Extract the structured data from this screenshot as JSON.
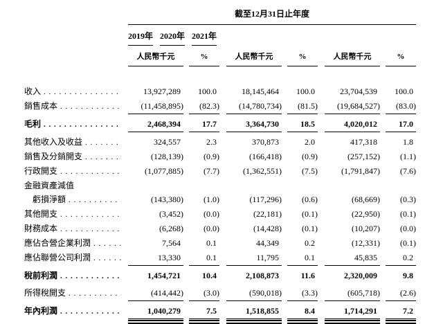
{
  "page": {
    "background": "#ffffff",
    "text_color": "#000000"
  },
  "table": {
    "period_header": "截至12月31日止年度",
    "unit_label": "人民幣千元",
    "percent_label": "%",
    "years": [
      "2019年",
      "2020年",
      "2021年"
    ],
    "rows": [
      {
        "label": "收入",
        "leaders": true,
        "bold": false,
        "indent": false,
        "rule": "none",
        "cells": [
          "13,927,289",
          "100.0",
          "18,145,464",
          "100.0",
          "23,704,539",
          "100.0"
        ]
      },
      {
        "label": "銷售成本",
        "leaders": true,
        "bold": false,
        "indent": false,
        "rule": "single",
        "cells": [
          "(11,458,895)",
          "(82.3)",
          "(14,780,734)",
          "(81.5)",
          "(19,684,527)",
          "(83.0)"
        ]
      },
      {
        "label": "毛利",
        "leaders": true,
        "bold": true,
        "indent": false,
        "rule": "single",
        "cells": [
          "2,468,394",
          "17.7",
          "3,364,730",
          "18.5",
          "4,020,012",
          "17.0"
        ]
      },
      {
        "label": "其他收入及收益",
        "leaders": true,
        "bold": false,
        "indent": false,
        "rule": "none",
        "cells": [
          "324,557",
          "2.3",
          "370,873",
          "2.0",
          "417,318",
          "1.8"
        ]
      },
      {
        "label": "銷售及分銷開支",
        "leaders": true,
        "bold": false,
        "indent": false,
        "rule": "none",
        "cells": [
          "(128,139)",
          "(0.9)",
          "(166,418)",
          "(0.9)",
          "(257,152)",
          "(1.1)"
        ]
      },
      {
        "label": "行政開支",
        "leaders": true,
        "bold": false,
        "indent": false,
        "rule": "none",
        "cells": [
          "(1,077,885)",
          "(7.7)",
          "(1,362,551)",
          "(7.5)",
          "(1,791,847)",
          "(7.6)"
        ]
      },
      {
        "label": "金融資產減值",
        "leaders": false,
        "bold": false,
        "indent": false,
        "rule": "none",
        "cells": null
      },
      {
        "label": "虧損淨額",
        "leaders": true,
        "bold": false,
        "indent": true,
        "rule": "none",
        "cells": [
          "(143,380)",
          "(1.0)",
          "(117,296)",
          "(0.6)",
          "(68,669)",
          "(0.3)"
        ]
      },
      {
        "label": "其他開支",
        "leaders": true,
        "bold": false,
        "indent": false,
        "rule": "none",
        "cells": [
          "(3,452)",
          "(0.0)",
          "(22,181)",
          "(0.1)",
          "(22,950)",
          "(0.1)"
        ]
      },
      {
        "label": "財務成本",
        "leaders": true,
        "bold": false,
        "indent": false,
        "rule": "none",
        "cells": [
          "(6,268)",
          "(0.0)",
          "(14,428)",
          "(0.1)",
          "(10,207)",
          "(0.0)"
        ]
      },
      {
        "label": "應佔合營企業利潤",
        "leaders": true,
        "bold": false,
        "indent": false,
        "rule": "none",
        "cells": [
          "7,564",
          "0.1",
          "44,349",
          "0.2",
          "(12,331)",
          "(0.1)"
        ]
      },
      {
        "label": "應佔聯營公司利潤",
        "leaders": true,
        "bold": false,
        "indent": false,
        "rule": "single",
        "cells": [
          "13,330",
          "0.1",
          "11,795",
          "0.1",
          "45,835",
          "0.2"
        ]
      },
      {
        "label": "稅前利潤",
        "leaders": true,
        "bold": true,
        "indent": false,
        "rule": "none",
        "cells": [
          "1,454,721",
          "10.4",
          "2,108,873",
          "11.6",
          "2,320,009",
          "9.8"
        ]
      },
      {
        "label": "所得稅開支",
        "leaders": true,
        "bold": false,
        "indent": false,
        "rule": "single",
        "cells": [
          "(414,442)",
          "(3.0)",
          "(590,018)",
          "(3.3)",
          "(605,718)",
          "(2.6)"
        ]
      },
      {
        "label": "年內利潤",
        "leaders": true,
        "bold": true,
        "indent": false,
        "rule": "double",
        "cells": [
          "1,040,279",
          "7.5",
          "1,518,855",
          "8.4",
          "1,714,291",
          "7.2"
        ]
      }
    ]
  }
}
